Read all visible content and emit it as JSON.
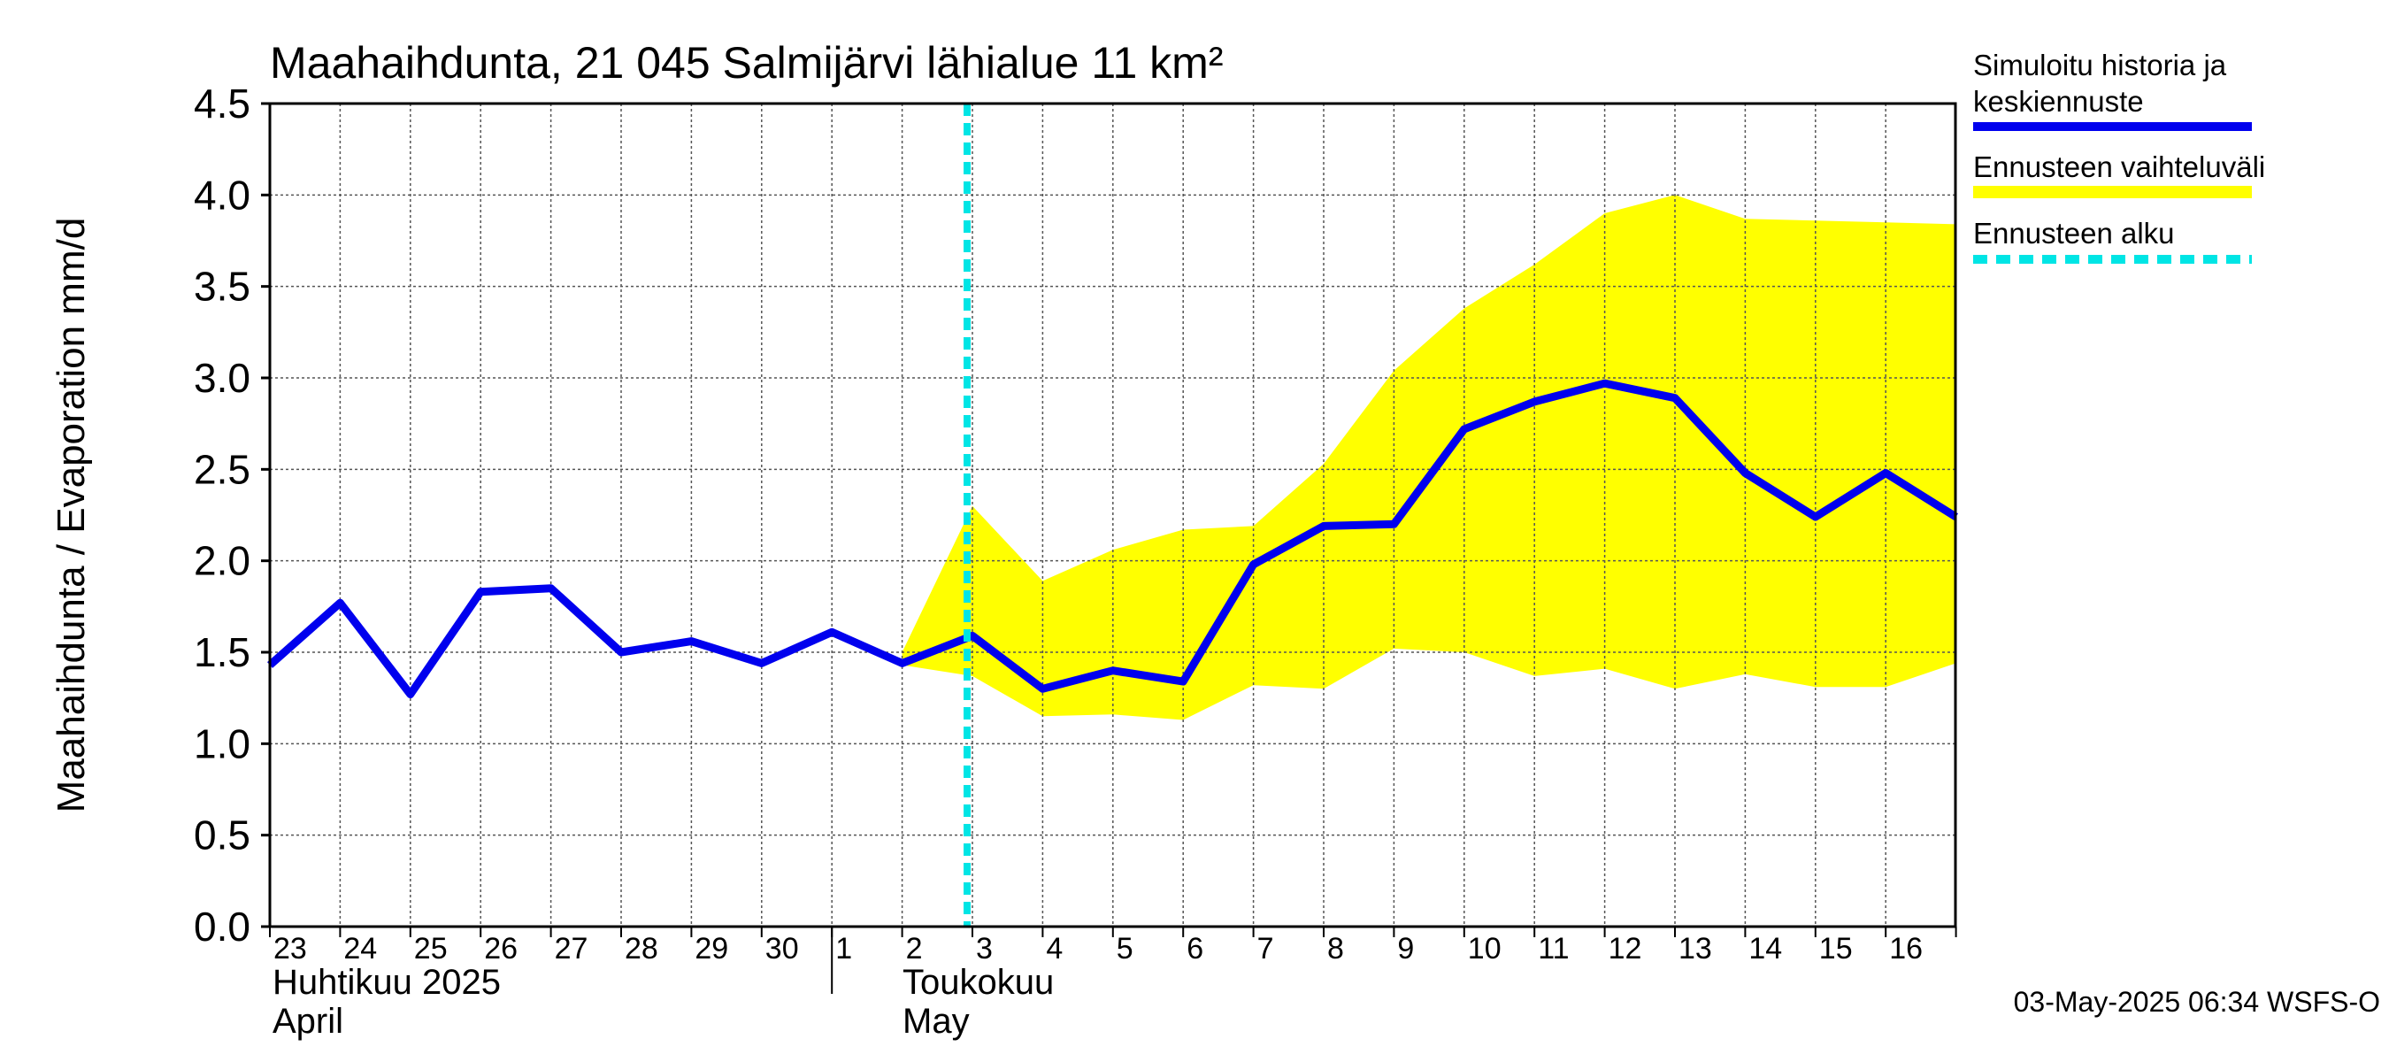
{
  "chart_data": {
    "type": "line",
    "title": "Maahaihdunta, 21 045 Salmijärvi lähialue 11 km²",
    "ylabel": "Maahaihdunta / Evaporation   mm/d",
    "ylim": [
      0,
      4.5
    ],
    "yticks": [
      "0.0",
      "0.5",
      "1.0",
      "1.5",
      "2.0",
      "2.5",
      "3.0",
      "3.5",
      "4.0",
      "4.5"
    ],
    "grid": true,
    "x_labels": [
      "23",
      "24",
      "25",
      "26",
      "27",
      "28",
      "29",
      "30",
      "1",
      "2",
      "3",
      "4",
      "5",
      "6",
      "7",
      "8",
      "9",
      "10",
      "11",
      "12",
      "13",
      "14",
      "15",
      "16"
    ],
    "month_labels": [
      {
        "line1": "Huhtikuu  2025",
        "line2": "April"
      },
      {
        "line1": "Toukokuu",
        "line2": "May"
      }
    ],
    "series": [
      {
        "name": "Simuloitu historia ja keskiennuste",
        "color": "#0000ee",
        "values": [
          1.43,
          1.77,
          1.27,
          1.83,
          1.85,
          1.5,
          1.56,
          1.44,
          1.61,
          1.44,
          1.59,
          1.3,
          1.4,
          1.34,
          1.98,
          2.19,
          2.2,
          2.72,
          2.87,
          2.97,
          2.89,
          2.48,
          2.24,
          2.48,
          2.24
        ]
      }
    ],
    "band": {
      "name": "Ennusteen vaihteluväli",
      "color": "#ffff00",
      "start_index": 9,
      "upper": [
        1.5,
        2.3,
        1.89,
        2.06,
        2.17,
        2.19,
        2.53,
        3.04,
        3.38,
        3.62,
        3.9,
        4.0,
        3.87,
        3.86,
        3.85,
        3.84
      ],
      "lower": [
        1.43,
        1.37,
        1.15,
        1.16,
        1.13,
        1.32,
        1.3,
        1.52,
        1.5,
        1.37,
        1.41,
        1.3,
        1.38,
        1.31,
        1.31,
        1.44
      ]
    },
    "forecast_start": {
      "name": "Ennusteen alku",
      "color": "#00e5e5",
      "x_index": 10
    },
    "legend": {
      "position": "right",
      "entries": [
        {
          "line1": "Simuloitu historia ja",
          "line2": "keskiennuste"
        },
        {
          "line1": "Ennusteen vaihteluväli",
          "line2": ""
        },
        {
          "line1": "Ennusteen alku",
          "line2": ""
        }
      ]
    },
    "timestamp": "03-May-2025 06:34 WSFS-O"
  }
}
